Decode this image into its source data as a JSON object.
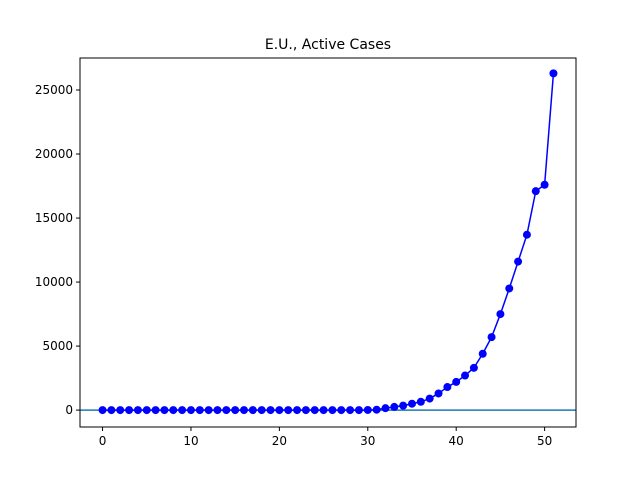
{
  "chart_data": {
    "type": "line",
    "title": "E.U., Active Cases",
    "xlabel": "",
    "ylabel": "",
    "xlim": [
      -2.55,
      53.55
    ],
    "ylim": [
      -1320,
      27500
    ],
    "xticks": [
      0,
      10,
      20,
      30,
      40,
      50
    ],
    "yticks": [
      0,
      5000,
      10000,
      15000,
      20000,
      25000
    ],
    "grid": false,
    "baseline": {
      "y": 0,
      "color": "#1f77b4"
    },
    "series": [
      {
        "color": "#0000ff",
        "marker": "circle",
        "x": [
          0,
          1,
          2,
          3,
          4,
          5,
          6,
          7,
          8,
          9,
          10,
          11,
          12,
          13,
          14,
          15,
          16,
          17,
          18,
          19,
          20,
          21,
          22,
          23,
          24,
          25,
          26,
          27,
          28,
          29,
          30,
          31,
          32,
          33,
          34,
          35,
          36,
          37,
          38,
          39,
          40,
          41,
          42,
          43,
          44,
          45,
          46,
          47,
          48,
          49,
          50,
          51
        ],
        "y": [
          0,
          0,
          0,
          0,
          0,
          0,
          0,
          0,
          0,
          0,
          0,
          0,
          0,
          0,
          0,
          0,
          0,
          0,
          0,
          0,
          0,
          0,
          0,
          0,
          0,
          0,
          0,
          0,
          0,
          0,
          10,
          30,
          150,
          250,
          350,
          500,
          650,
          900,
          1300,
          1800,
          2200,
          2700,
          3300,
          4400,
          5700,
          7500,
          9500,
          11600,
          13700,
          17100,
          17600,
          26300
        ]
      }
    ]
  }
}
